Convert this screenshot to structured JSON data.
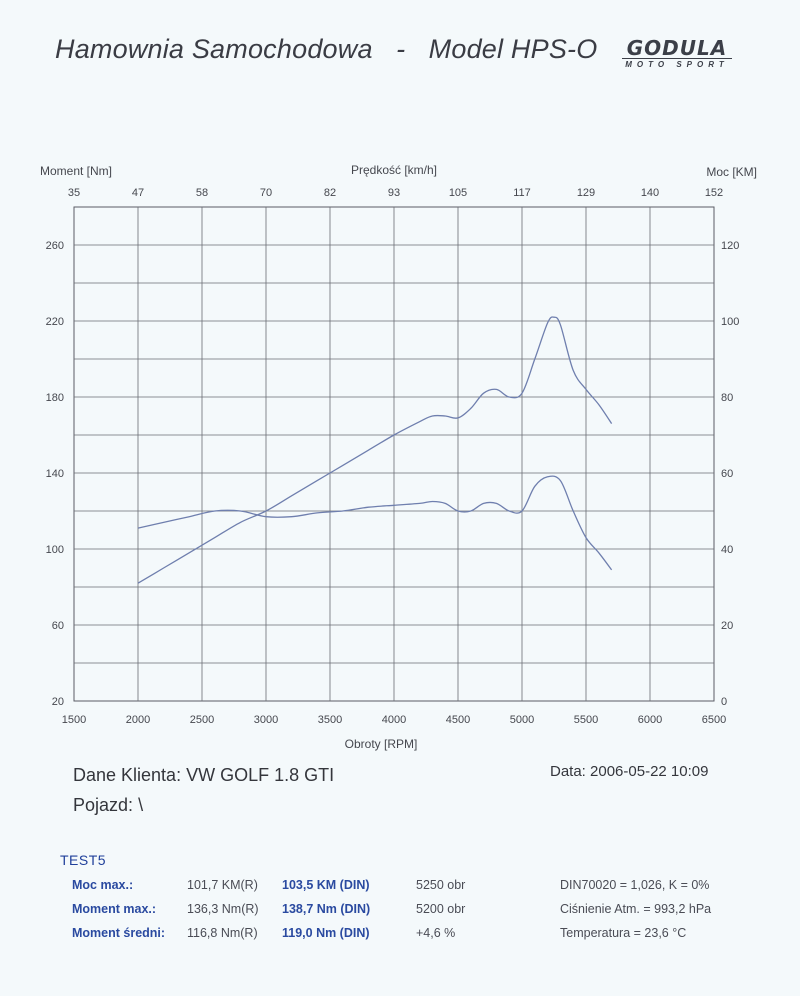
{
  "header": {
    "title_left": "Hamownia Samochodowa",
    "title_sep": "-",
    "title_right": "Model HPS-O",
    "logo_main": "GODULA",
    "logo_sub": "MOTO SPORT"
  },
  "chart_data": {
    "type": "line",
    "xlabel": "Obroty [RPM]",
    "ylabel_left": "Moment [Nm]",
    "ylabel_right": "Moc [KM]",
    "top_axis_label": "Prędkość [km/h]",
    "xlim": [
      1500,
      6500
    ],
    "ylim_left": [
      20,
      280
    ],
    "ylim_right": [
      0,
      130
    ],
    "x_ticks": [
      1500,
      2000,
      2500,
      3000,
      3500,
      4000,
      4500,
      5000,
      5500,
      6000,
      6500
    ],
    "y_left_ticks": [
      20,
      60,
      100,
      140,
      180,
      220,
      260
    ],
    "y_right_ticks": [
      0,
      20,
      40,
      60,
      80,
      100,
      120
    ],
    "speed_ticks": [
      "35",
      "47",
      "58",
      "70",
      "82",
      "93",
      "105",
      "117",
      "129",
      "140",
      "152"
    ],
    "grid": true,
    "series": [
      {
        "axis": "right",
        "x": [
          2000,
          2200,
          2400,
          2600,
          2800,
          3000,
          3200,
          3400,
          3600,
          3800,
          4000,
          4200,
          4300,
          4400,
          4500,
          4600,
          4700,
          4800,
          4900,
          5000,
          5100,
          5200,
          5250,
          5300,
          5400,
          5500,
          5600,
          5700
        ],
        "y": [
          31,
          35,
          39,
          43,
          47,
          50,
          54,
          58,
          62,
          66,
          70,
          73.5,
          75,
          75,
          74.5,
          77,
          81,
          82,
          80,
          81,
          90,
          99.5,
          101,
          99,
          87,
          82,
          78,
          73
        ]
      },
      {
        "axis": "left",
        "x": [
          2000,
          2200,
          2400,
          2600,
          2800,
          3000,
          3200,
          3400,
          3600,
          3800,
          4000,
          4200,
          4300,
          4400,
          4500,
          4600,
          4700,
          4800,
          4900,
          5000,
          5100,
          5200,
          5300,
          5400,
          5500,
          5600,
          5700
        ],
        "y": [
          111,
          114,
          117,
          120,
          120,
          117,
          117,
          119,
          120,
          122,
          123,
          124,
          125,
          124,
          120,
          120,
          124,
          124,
          120,
          120,
          133,
          138,
          136,
          120,
          106,
          98,
          89
        ]
      }
    ]
  },
  "client": {
    "label": "Dane Klienta:",
    "value": "VW GOLF 1.8 GTI",
    "vehicle_label": "Pojazd:",
    "vehicle_value": "\\"
  },
  "date": "Data: 2006-05-22  10:09",
  "results": {
    "test_name": "TEST5",
    "rows": [
      {
        "label": "Moc max.:",
        "r": "101,7 KM(R)",
        "din": "103,5 KM (DIN)",
        "extra": "5250 obr"
      },
      {
        "label": "Moment max.:",
        "r": "136,3 Nm(R)",
        "din": "138,7 Nm (DIN)",
        "extra": "5200 obr"
      },
      {
        "label": "Moment średni:",
        "r": "116,8 Nm(R)",
        "din": "119,0 Nm (DIN)",
        "extra": "+4,6 %"
      }
    ],
    "env": [
      "DIN70020 = 1,026, K = 0%",
      "Ciśnienie Atm. = 993,2 hPa",
      "Temperatura = 23,6 °C"
    ]
  }
}
